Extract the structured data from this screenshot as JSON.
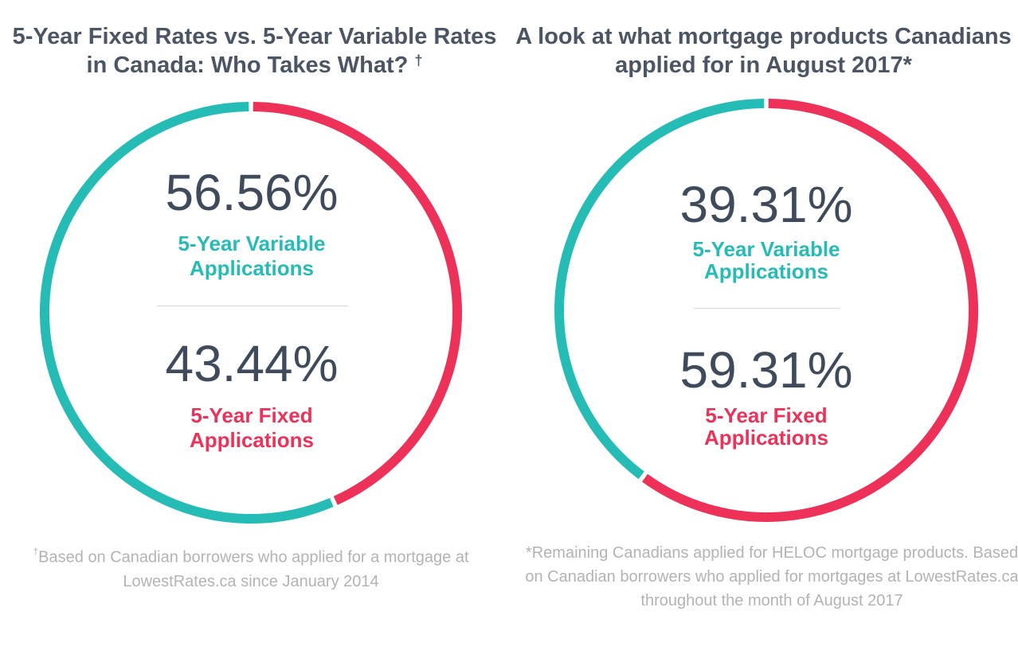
{
  "colors": {
    "variable": "#26bcb6",
    "fixed": "#ee3158",
    "text": "#3f4b5b",
    "note": "#b3b3b3"
  },
  "left": {
    "title": "5-Year Fixed Rates vs. 5-Year Variable Rates in Canada: Who Takes What?",
    "title_mark": "†",
    "variable_value": "56.56%",
    "variable_label_1": "5-Year Variable",
    "variable_label_2": "Applications",
    "fixed_value": "43.44%",
    "fixed_label_1": "5-Year Fixed",
    "fixed_label_2": "Applications",
    "note_mark": "†",
    "note": "Based on Canadian borrowers who applied for a mortgage at LowestRates.ca since January 2014"
  },
  "right": {
    "title": "A look at what mortgage products Canadians applied for in August 2017*",
    "variable_value": "39.31%",
    "variable_label_1": "5-Year Variable",
    "variable_label_2": "Applications",
    "fixed_value": "59.31%",
    "fixed_label_1": "5-Year Fixed",
    "fixed_label_2": "Applications",
    "note": "*Remaining Canadians applied for HELOC mortgage products. Based on Canadian borrowers who applied for mortgages at LowestRates.ca throughout the month of August 2017"
  },
  "chart_data": [
    {
      "type": "pie",
      "style": "donut",
      "title": "5-Year Fixed Rates vs. 5-Year Variable Rates in Canada: Who Takes What? †",
      "categories": [
        "5-Year Fixed Applications",
        "5-Year Variable Applications"
      ],
      "values": [
        43.44,
        56.56
      ],
      "colors": [
        "#ee3158",
        "#26bcb6"
      ]
    },
    {
      "type": "pie",
      "style": "donut",
      "title": "A look at what mortgage products Canadians applied for in August 2017*",
      "categories": [
        "5-Year Fixed Applications",
        "5-Year Variable Applications"
      ],
      "values": [
        59.31,
        39.31
      ],
      "colors": [
        "#ee3158",
        "#26bcb6"
      ]
    }
  ]
}
